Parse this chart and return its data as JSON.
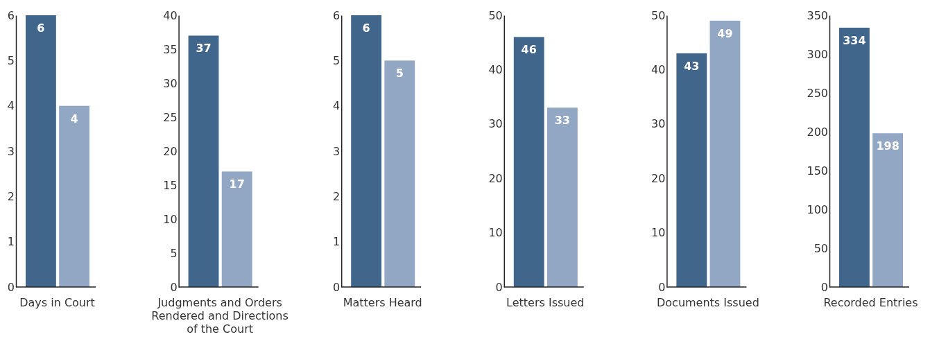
{
  "chart_data": [
    {
      "type": "bar",
      "xlabel": "Days in Court",
      "categories": [
        null,
        null
      ],
      "values": [
        6,
        4
      ],
      "colors": [
        "#41668c",
        "#92a7c3"
      ],
      "ylim": [
        0,
        6
      ],
      "yticks": [
        0,
        1,
        2,
        3,
        4,
        5,
        6
      ],
      "data_labels": true
    },
    {
      "type": "bar",
      "xlabel": "Judgments and Orders Rendered and Directions of the Court",
      "categories": [
        null,
        null
      ],
      "values": [
        37,
        17
      ],
      "colors": [
        "#41668c",
        "#92a7c3"
      ],
      "ylim": [
        0,
        40
      ],
      "yticks": [
        0,
        5,
        10,
        15,
        20,
        25,
        30,
        35,
        40
      ],
      "data_labels": true
    },
    {
      "type": "bar",
      "xlabel": "Matters Heard",
      "categories": [
        null,
        null
      ],
      "values": [
        6,
        5
      ],
      "colors": [
        "#41668c",
        "#92a7c3"
      ],
      "ylim": [
        0,
        6
      ],
      "yticks": [
        0,
        1,
        2,
        3,
        4,
        5,
        6
      ],
      "data_labels": true
    },
    {
      "type": "bar",
      "xlabel": "Letters Issued",
      "categories": [
        null,
        null
      ],
      "values": [
        46,
        33
      ],
      "colors": [
        "#41668c",
        "#92a7c3"
      ],
      "ylim": [
        0,
        50
      ],
      "yticks": [
        0,
        10,
        20,
        30,
        40,
        50
      ],
      "data_labels": true
    },
    {
      "type": "bar",
      "xlabel": "Documents Issued",
      "categories": [
        null,
        null
      ],
      "values": [
        43,
        49
      ],
      "colors": [
        "#41668c",
        "#92a7c3"
      ],
      "ylim": [
        0,
        50
      ],
      "yticks": [
        0,
        10,
        20,
        30,
        40,
        50
      ],
      "data_labels": true
    },
    {
      "type": "bar",
      "xlabel": "Recorded Entries",
      "categories": [
        null,
        null
      ],
      "values": [
        334,
        198
      ],
      "colors": [
        "#41668c",
        "#92a7c3"
      ],
      "ylim": [
        0,
        350
      ],
      "yticks": [
        0,
        50,
        100,
        150,
        200,
        250,
        300,
        350
      ],
      "data_labels": true
    }
  ]
}
